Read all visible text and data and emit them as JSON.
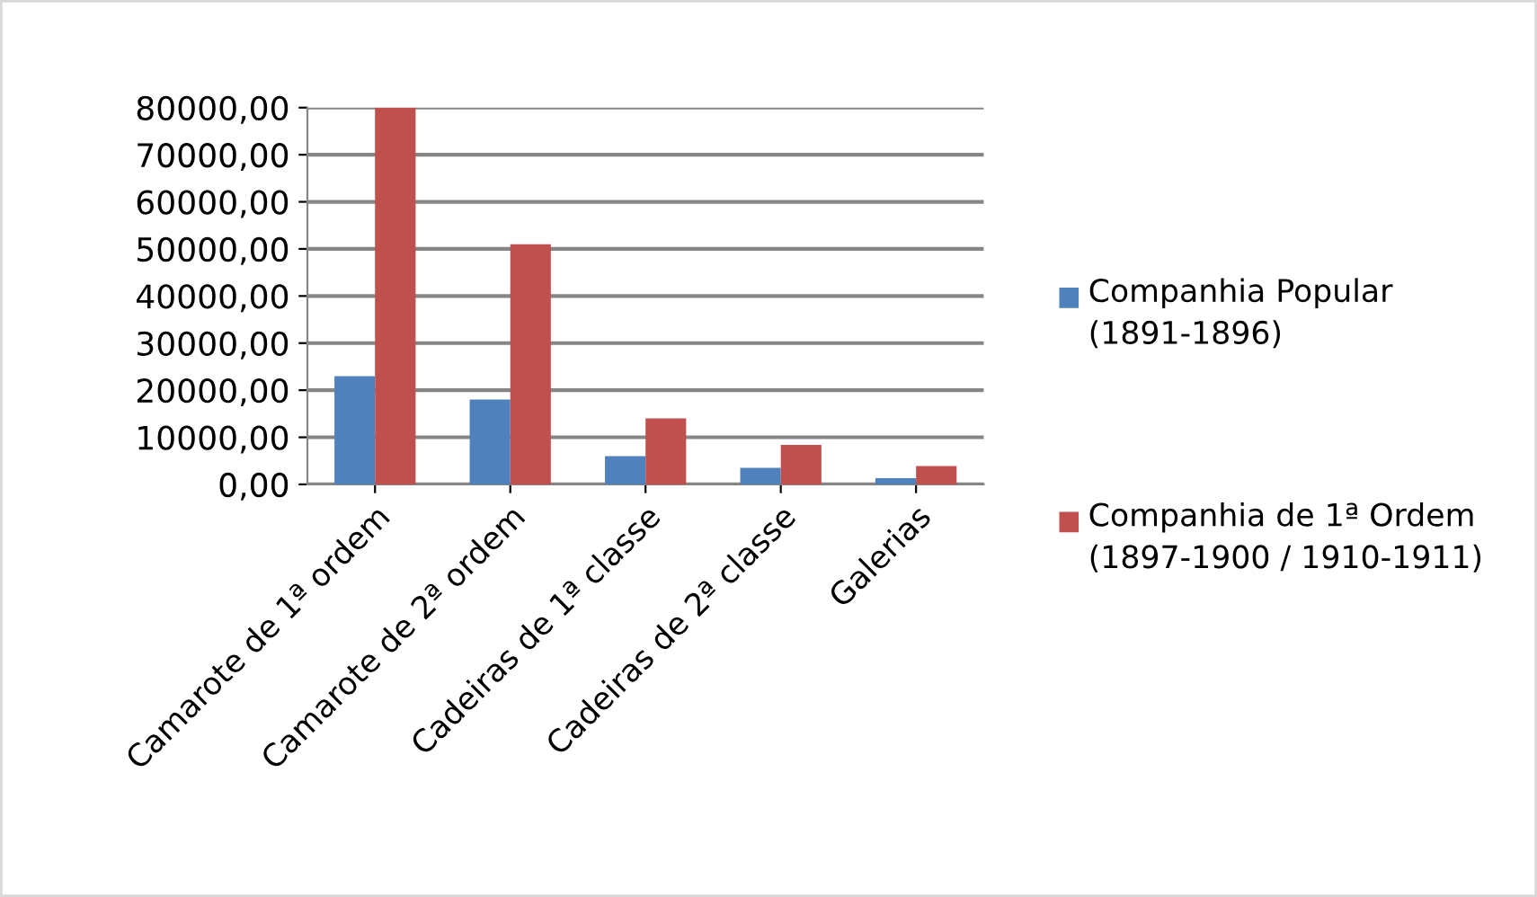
{
  "chart_data": {
    "type": "bar",
    "categories": [
      "Camarote de 1ª ordem",
      "Camarote de 2ª ordem",
      "Cadeiras de 1ª classe",
      "Cadeiras de 2ª classe",
      "Galerias"
    ],
    "series": [
      {
        "name": "Companhia Popular (1891-1896)",
        "color": "#4f81bd",
        "values": [
          23000,
          18000,
          6000,
          3500,
          1300
        ]
      },
      {
        "name": "Companhia de 1ª Ordem (1897-1900 / 1910-1911)",
        "color": "#c0504d",
        "values": [
          80000,
          51000,
          14000,
          8400,
          3900
        ]
      }
    ],
    "ylim": [
      0,
      80000
    ],
    "yticks": [
      {
        "value": 0,
        "label": "0,00"
      },
      {
        "value": 10000,
        "label": "10000,00"
      },
      {
        "value": 20000,
        "label": "20000,00"
      },
      {
        "value": 30000,
        "label": "30000,00"
      },
      {
        "value": 40000,
        "label": "40000,00"
      },
      {
        "value": 50000,
        "label": "50000,00"
      },
      {
        "value": 60000,
        "label": "60000,00"
      },
      {
        "value": 70000,
        "label": "70000,00"
      },
      {
        "value": 80000,
        "label": "80000,00"
      }
    ],
    "grid": "y",
    "legend": "right"
  }
}
